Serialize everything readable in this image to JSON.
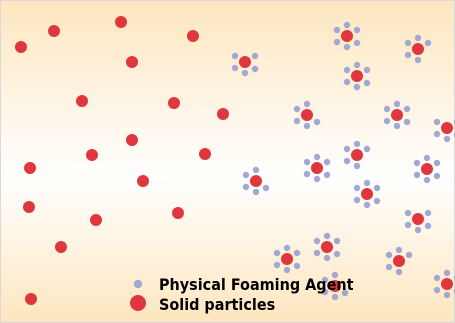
{
  "colors": {
    "background_edge": "#fde6bf",
    "background_center": "#ffffff",
    "frame": "#d9d9d9",
    "solid_particle": "#e0373e",
    "foaming_agent": "#a3a8d3"
  },
  "legend": {
    "foaming_agent_label": "Physical Foaming Agent",
    "solid_particle_label": "Solid particles",
    "foaming_agent_icon": "small-lavender-dot",
    "solid_particle_icon": "large-red-dot"
  }
}
